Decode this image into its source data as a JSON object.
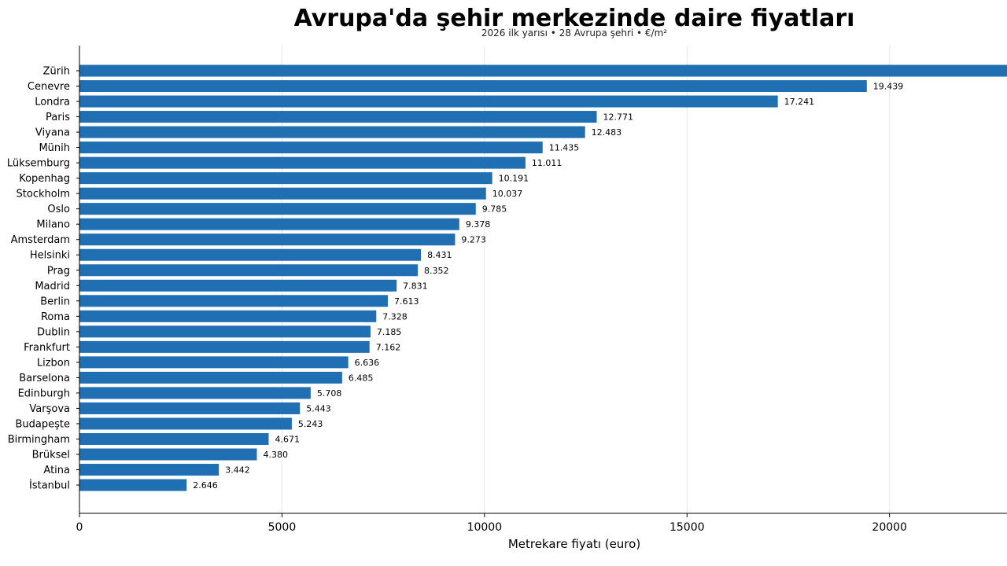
{
  "chart_data": {
    "type": "bar",
    "orientation": "horizontal",
    "title": "Avrupa'da şehir merkezinde daire fiyatları",
    "subtitle": "2026 ilk yarısı • 28 Avrupa şehri • €/m²",
    "xlabel": "Metrekare fiyatı (euro)",
    "ylabel": "",
    "xlim": [
      0,
      22900
    ],
    "xticks": [
      0,
      5000,
      10000,
      15000,
      20000
    ],
    "xtick_labels": [
      "0",
      "5000",
      "10000",
      "15000",
      "20000"
    ],
    "grid": "vertical",
    "bar_color": "#1f6fb2",
    "categories": [
      "Zürih",
      "Cenevre",
      "Londra",
      "Paris",
      "Viyana",
      "Münih",
      "Lüksemburg",
      "Kopenhag",
      "Stockholm",
      "Oslo",
      "Milano",
      "Amsterdam",
      "Helsinki",
      "Prag",
      "Madrid",
      "Berlin",
      "Roma",
      "Dublin",
      "Frankfurt",
      "Lizbon",
      "Barselona",
      "Edinburgh",
      "Varşova",
      "Budapeşte",
      "Birmingham",
      "Brüksel",
      "Atina",
      "İstanbul"
    ],
    "values": [
      22900,
      19439,
      17241,
      12771,
      12483,
      11435,
      11011,
      10191,
      10037,
      9785,
      9378,
      9273,
      8431,
      8352,
      7831,
      7613,
      7328,
      7185,
      7162,
      6636,
      6485,
      5708,
      5443,
      5243,
      4671,
      4380,
      3442,
      2646
    ],
    "value_labels": [
      "",
      "19.439",
      "17.241",
      "12.771",
      "12.483",
      "11.435",
      "11.011",
      "10.191",
      "10.037",
      "9.785",
      "9.378",
      "9.273",
      "8.431",
      "8.352",
      "7.831",
      "7.613",
      "7.328",
      "7.185",
      "7.162",
      "6.636",
      "6.485",
      "5.708",
      "5.443",
      "5.243",
      "4.671",
      "4.380",
      "3.442",
      "2.646"
    ]
  }
}
